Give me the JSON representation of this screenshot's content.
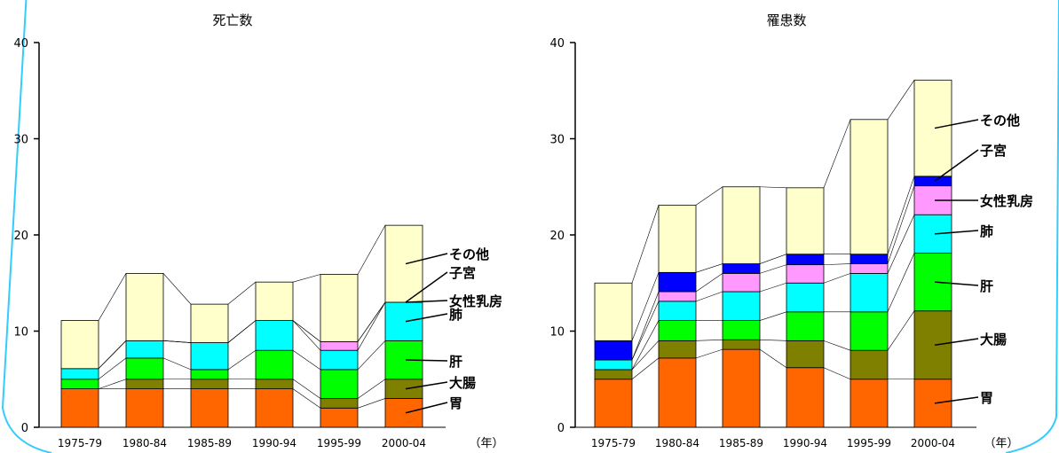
{
  "chart_data": [
    {
      "type": "bar",
      "stacked": true,
      "title": "死亡数",
      "categories": [
        "1975-79",
        "1980-84",
        "1985-89",
        "1990-94",
        "1995-99",
        "2000-04"
      ],
      "x_unit": "（年）",
      "ylim": [
        0,
        40
      ],
      "yticks": [
        0,
        10,
        20,
        30,
        40
      ],
      "grid": false,
      "series": [
        {
          "name": "胃",
          "color": "#ff6600",
          "values": [
            4.0,
            4.0,
            4.0,
            4.0,
            2.0,
            3.0
          ]
        },
        {
          "name": "大腸",
          "color": "#808000",
          "values": [
            0,
            1.0,
            1.0,
            1.0,
            1.0,
            2.0
          ]
        },
        {
          "name": "肝",
          "color": "#00ff00",
          "values": [
            1.0,
            2.2,
            1.0,
            3.0,
            3.0,
            4.0
          ]
        },
        {
          "name": "肺",
          "color": "#00ffff",
          "values": [
            1.1,
            1.8,
            2.8,
            3.1,
            2.0,
            4.0
          ]
        },
        {
          "name": "女性乳房",
          "color": "#ff99ff",
          "values": [
            0,
            0,
            0,
            0,
            0.9,
            0
          ]
        },
        {
          "name": "子宮",
          "color": "#0000ff",
          "values": [
            0,
            0,
            0,
            0,
            0,
            0
          ]
        },
        {
          "name": "その他",
          "color": "#ffffcc",
          "values": [
            5.0,
            7.0,
            4.0,
            4.0,
            7.0,
            8.0
          ]
        }
      ]
    },
    {
      "type": "bar",
      "stacked": true,
      "title": "罹患数",
      "categories": [
        "1975-79",
        "1980-84",
        "1985-89",
        "1990-94",
        "1995-99",
        "2000-04"
      ],
      "x_unit": "（年）",
      "ylim": [
        0,
        40
      ],
      "yticks": [
        0,
        10,
        20,
        30,
        40
      ],
      "grid": false,
      "series": [
        {
          "name": "胃",
          "color": "#ff6600",
          "values": [
            5.0,
            7.2,
            8.1,
            6.2,
            5.0,
            5.0
          ]
        },
        {
          "name": "大腸",
          "color": "#808000",
          "values": [
            1.0,
            1.8,
            1.0,
            2.8,
            3.0,
            7.1
          ]
        },
        {
          "name": "肝",
          "color": "#00ff00",
          "values": [
            0,
            2.1,
            2.0,
            3.0,
            4.0,
            6.0
          ]
        },
        {
          "name": "肺",
          "color": "#00ffff",
          "values": [
            1.0,
            2.0,
            3.0,
            3.0,
            4.0,
            4.0
          ]
        },
        {
          "name": "女性乳房",
          "color": "#ff99ff",
          "values": [
            0,
            1.0,
            1.9,
            1.9,
            1.0,
            3.0
          ]
        },
        {
          "name": "子宮",
          "color": "#0000ff",
          "values": [
            2.0,
            2.0,
            1.0,
            1.1,
            1.0,
            1.0
          ]
        },
        {
          "name": "その他",
          "color": "#ffffcc",
          "values": [
            6.0,
            7.0,
            8.0,
            6.9,
            14.0,
            10.0
          ]
        }
      ]
    }
  ]
}
